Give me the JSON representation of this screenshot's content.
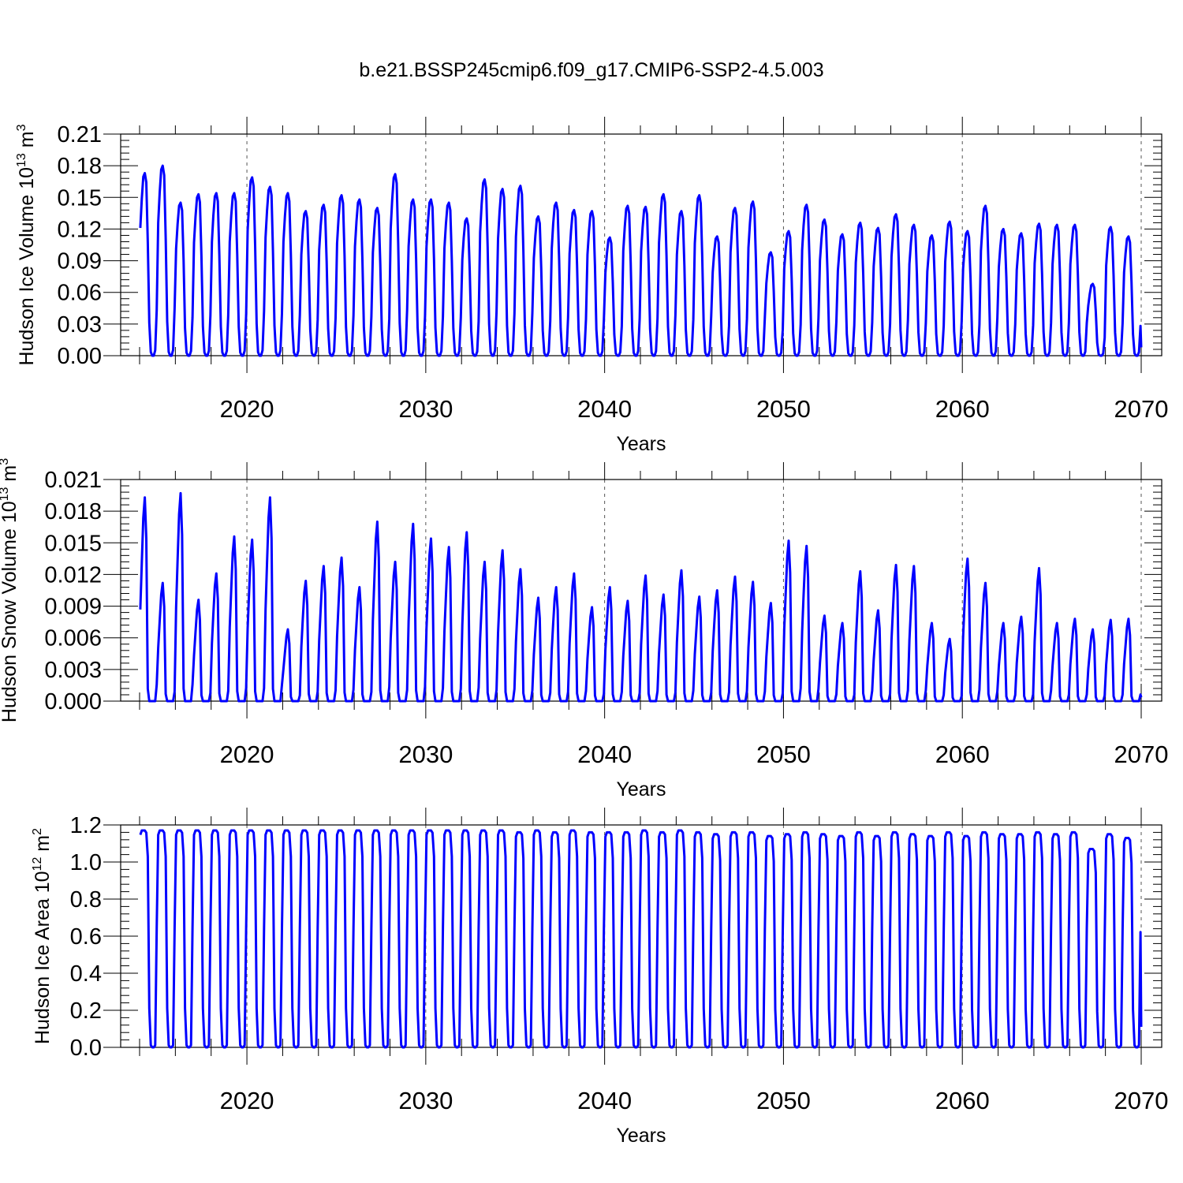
{
  "title": "b.e21.BSSP245cmip6.f09_g17.CMIP6-SSP2-4.5.003",
  "colors": {
    "series": "#0000ff",
    "axes": "#000000",
    "grid": "#555555"
  },
  "chart_data": [
    {
      "type": "line",
      "xlabel": "Years",
      "ylabel_main": "Hudson Ice Volume 10",
      "ylabel_sup1": "13",
      "ylabel_mid": " m",
      "ylabel_sup2": "3",
      "xlim": [
        2014,
        2070
      ],
      "ylim": [
        0,
        0.21
      ],
      "x_ticks": [
        2020,
        2030,
        2040,
        2050,
        2060,
        2070
      ],
      "x_tick_labels": [
        "2020",
        "2030",
        "2040",
        "2050",
        "2060",
        "2070"
      ],
      "y_ticks": [
        0.0,
        0.03,
        0.06,
        0.09,
        0.12,
        0.15,
        0.18,
        0.21
      ],
      "y_tick_labels": [
        "0.00",
        "0.03",
        "0.06",
        "0.09",
        "0.12",
        "0.15",
        "0.18",
        "0.21"
      ],
      "grid": "dashed vertical at major x ticks",
      "annual_maxima": [
        0.173,
        0.18,
        0.145,
        0.153,
        0.154,
        0.154,
        0.169,
        0.16,
        0.154,
        0.137,
        0.143,
        0.152,
        0.148,
        0.14,
        0.172,
        0.148,
        0.148,
        0.145,
        0.13,
        0.167,
        0.158,
        0.161,
        0.132,
        0.145,
        0.138,
        0.137,
        0.112,
        0.142,
        0.141,
        0.153,
        0.137,
        0.152,
        0.113,
        0.14,
        0.146,
        0.098,
        0.118,
        0.143,
        0.129,
        0.115,
        0.126,
        0.121,
        0.134,
        0.124,
        0.114,
        0.127,
        0.118,
        0.142,
        0.12,
        0.116,
        0.125,
        0.124,
        0.124,
        0.068,
        0.122,
        0.113
      ]
    },
    {
      "type": "line",
      "xlabel": "Years",
      "ylabel_main": "Hudson Snow Volume 10",
      "ylabel_sup1": "13",
      "ylabel_mid": " m",
      "ylabel_sup2": "3",
      "xlim": [
        2014,
        2070
      ],
      "ylim": [
        0,
        0.021
      ],
      "x_ticks": [
        2020,
        2030,
        2040,
        2050,
        2060,
        2070
      ],
      "x_tick_labels": [
        "2020",
        "2030",
        "2040",
        "2050",
        "2060",
        "2070"
      ],
      "y_ticks": [
        0.0,
        0.003,
        0.006,
        0.009,
        0.012,
        0.015,
        0.018,
        0.021
      ],
      "y_tick_labels": [
        "0.000",
        "0.003",
        "0.006",
        "0.009",
        "0.012",
        "0.015",
        "0.018",
        "0.021"
      ],
      "grid": "dashed vertical at major x ticks",
      "annual_maxima": [
        0.0193,
        0.0112,
        0.0197,
        0.0096,
        0.0121,
        0.0156,
        0.0153,
        0.0193,
        0.0068,
        0.0114,
        0.0128,
        0.0136,
        0.0108,
        0.017,
        0.0132,
        0.0168,
        0.0154,
        0.0146,
        0.016,
        0.0132,
        0.0143,
        0.0125,
        0.0098,
        0.0108,
        0.0121,
        0.0089,
        0.0108,
        0.0095,
        0.0119,
        0.0101,
        0.0124,
        0.0099,
        0.0105,
        0.0118,
        0.0113,
        0.0093,
        0.0152,
        0.0147,
        0.0081,
        0.0074,
        0.0123,
        0.0086,
        0.0129,
        0.0128,
        0.0074,
        0.0059,
        0.0135,
        0.0112,
        0.0074,
        0.008,
        0.0126,
        0.0074,
        0.0078,
        0.0068,
        0.0077,
        0.0078
      ]
    },
    {
      "type": "line",
      "xlabel": "Years",
      "ylabel_main": "Hudson Ice Area 10",
      "ylabel_sup1": "12",
      "ylabel_mid": " m",
      "ylabel_sup2": "2",
      "xlim": [
        2014,
        2070
      ],
      "ylim": [
        0,
        1.2
      ],
      "x_ticks": [
        2020,
        2030,
        2040,
        2050,
        2060,
        2070
      ],
      "x_tick_labels": [
        "2020",
        "2030",
        "2040",
        "2050",
        "2060",
        "2070"
      ],
      "y_ticks": [
        0.0,
        0.2,
        0.4,
        0.6,
        0.8,
        1.0,
        1.2
      ],
      "y_tick_labels": [
        "0.0",
        "0.2",
        "0.4",
        "0.6",
        "0.8",
        "1.0",
        "1.2"
      ],
      "grid": "dashed vertical at major x ticks",
      "annual_maxima": [
        1.17,
        1.17,
        1.17,
        1.17,
        1.17,
        1.17,
        1.17,
        1.17,
        1.17,
        1.17,
        1.17,
        1.17,
        1.17,
        1.17,
        1.17,
        1.17,
        1.17,
        1.17,
        1.17,
        1.17,
        1.17,
        1.16,
        1.17,
        1.16,
        1.17,
        1.16,
        1.16,
        1.16,
        1.17,
        1.16,
        1.17,
        1.16,
        1.15,
        1.16,
        1.16,
        1.14,
        1.15,
        1.16,
        1.15,
        1.14,
        1.16,
        1.14,
        1.16,
        1.15,
        1.14,
        1.16,
        1.14,
        1.16,
        1.15,
        1.15,
        1.16,
        1.15,
        1.16,
        1.07,
        1.15,
        1.13
      ]
    }
  ]
}
